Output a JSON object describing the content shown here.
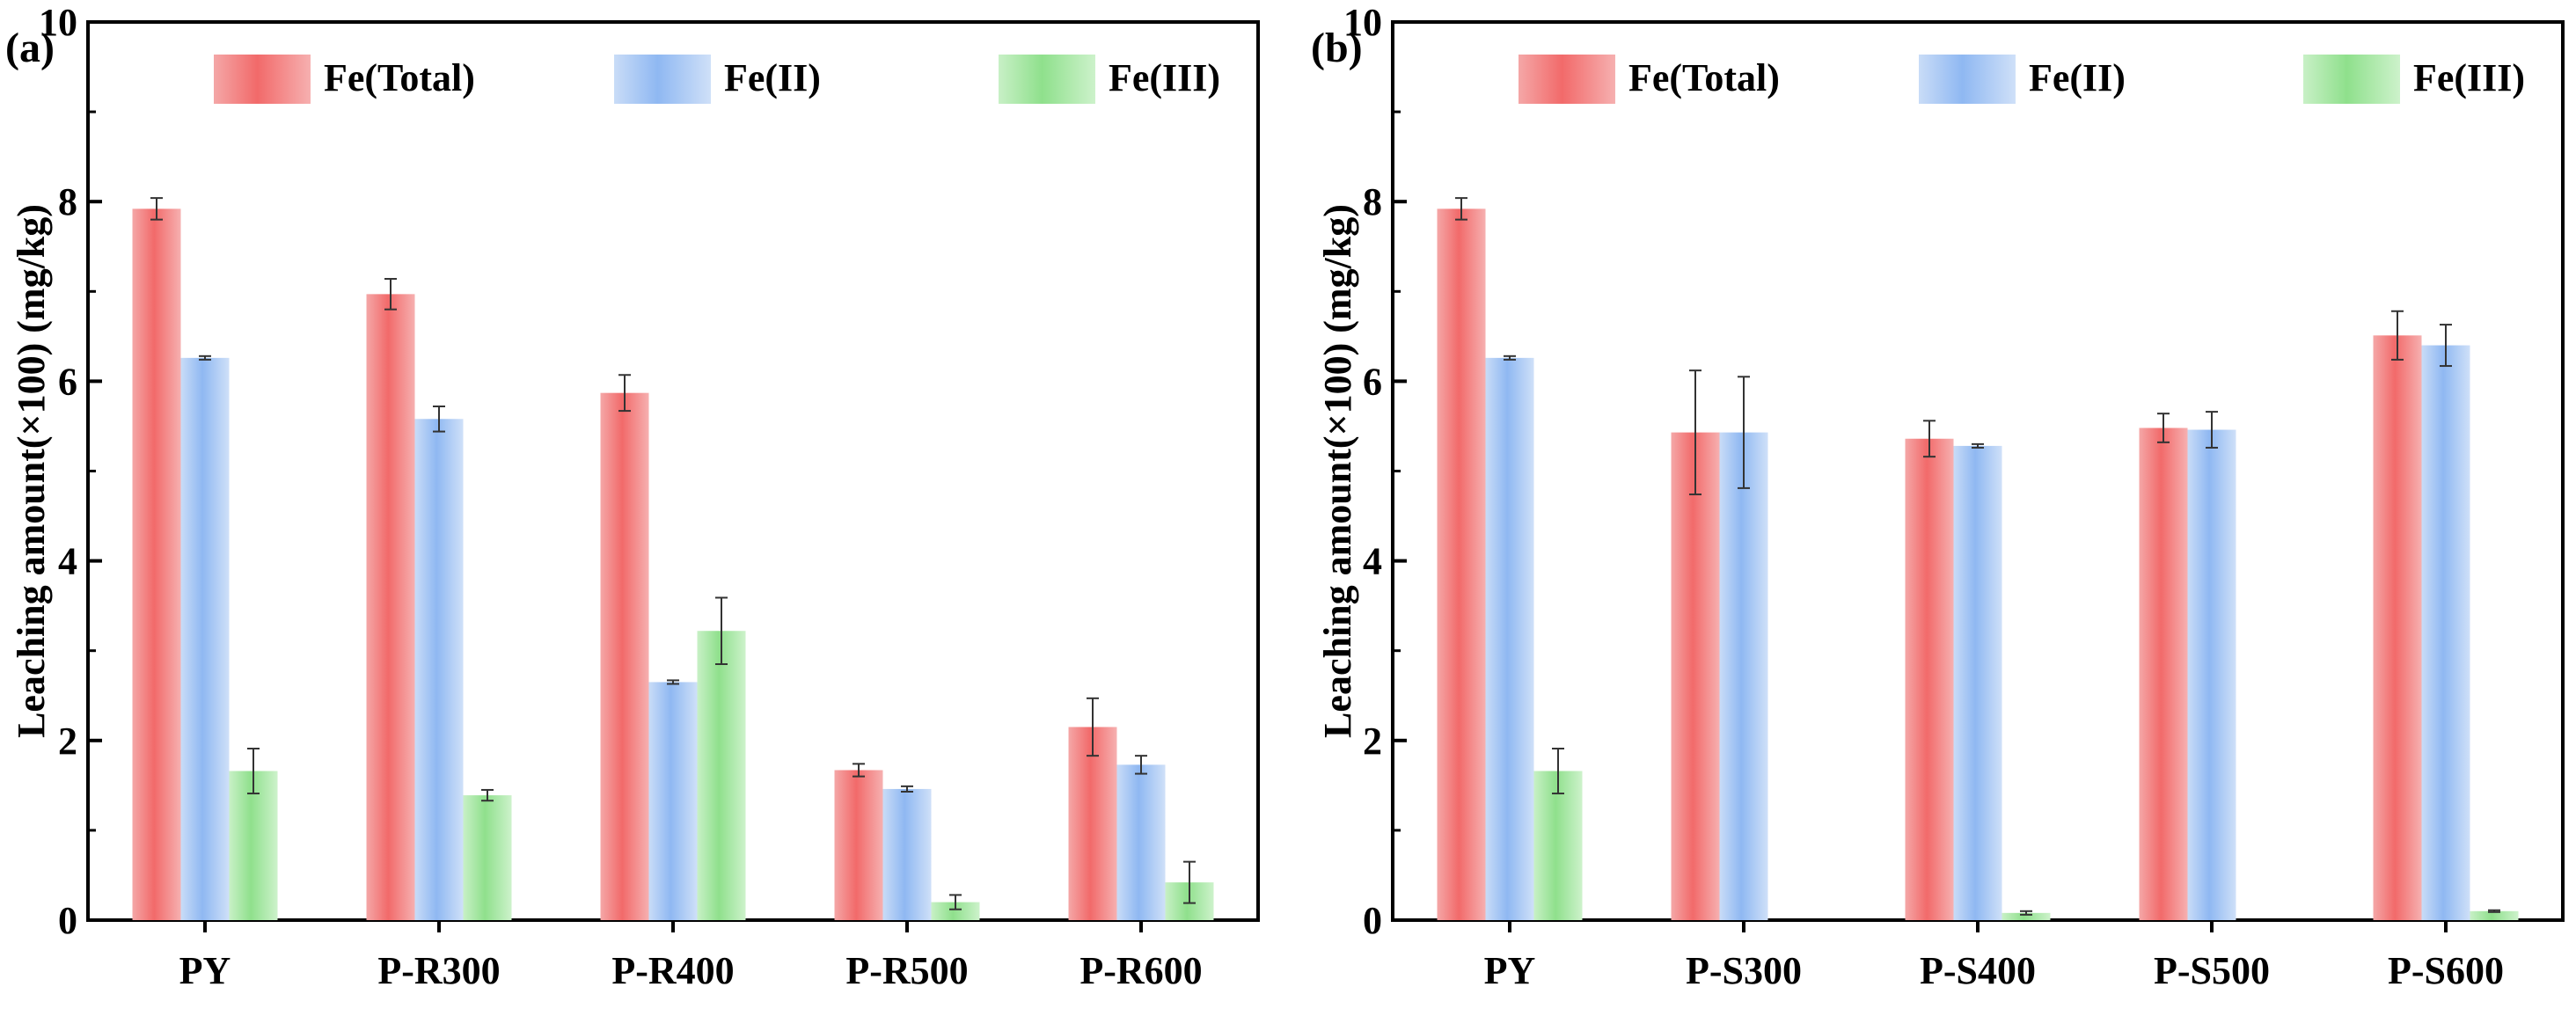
{
  "chart_data": [
    {
      "type": "bar",
      "panel_label": "(a)",
      "ylabel": "Leaching amount(×100) (mg/kg)",
      "xlabel": "",
      "ylim": [
        0,
        10
      ],
      "yticks": [
        0,
        2,
        4,
        6,
        8,
        10
      ],
      "categories": [
        "PY",
        "P-R300",
        "P-R400",
        "P-R500",
        "P-R600"
      ],
      "series": [
        {
          "name": "Fe(Total)",
          "values": [
            7.92,
            6.97,
            5.87,
            1.67,
            2.15
          ],
          "errors": [
            0.12,
            0.17,
            0.2,
            0.07,
            0.32
          ]
        },
        {
          "name": "Fe(II)",
          "values": [
            6.26,
            5.58,
            2.65,
            1.46,
            1.73
          ],
          "errors": [
            0.02,
            0.14,
            0.02,
            0.03,
            0.1
          ]
        },
        {
          "name": "Fe(III)",
          "values": [
            1.66,
            1.39,
            3.22,
            0.2,
            0.42
          ],
          "errors": [
            0.25,
            0.06,
            0.37,
            0.08,
            0.23
          ]
        }
      ],
      "legend_position": "top",
      "grid": false
    },
    {
      "type": "bar",
      "panel_label": "(b)",
      "ylabel": "Leaching amount(×100) (mg/kg)",
      "xlabel": "",
      "ylim": [
        0,
        10
      ],
      "yticks": [
        0,
        2,
        4,
        6,
        8,
        10
      ],
      "categories": [
        "PY",
        "P-S300",
        "P-S400",
        "P-S500",
        "P-S600"
      ],
      "series": [
        {
          "name": "Fe(Total)",
          "values": [
            7.92,
            5.43,
            5.36,
            5.48,
            6.51
          ],
          "errors": [
            0.12,
            0.69,
            0.2,
            0.16,
            0.27
          ]
        },
        {
          "name": "Fe(II)",
          "values": [
            6.26,
            5.43,
            5.28,
            5.46,
            6.4
          ],
          "errors": [
            0.02,
            0.62,
            0.02,
            0.2,
            0.23
          ]
        },
        {
          "name": "Fe(III)",
          "values": [
            1.66,
            0,
            0.08,
            0,
            0.1
          ],
          "errors": [
            0.25,
            0,
            0.02,
            0,
            0.01
          ]
        }
      ],
      "legend_position": "top",
      "grid": false
    }
  ],
  "colors": {
    "Fe(Total)": "#f26a6a",
    "Fe(II)": "#8fb8f2",
    "Fe(III)": "#8fe08c"
  }
}
